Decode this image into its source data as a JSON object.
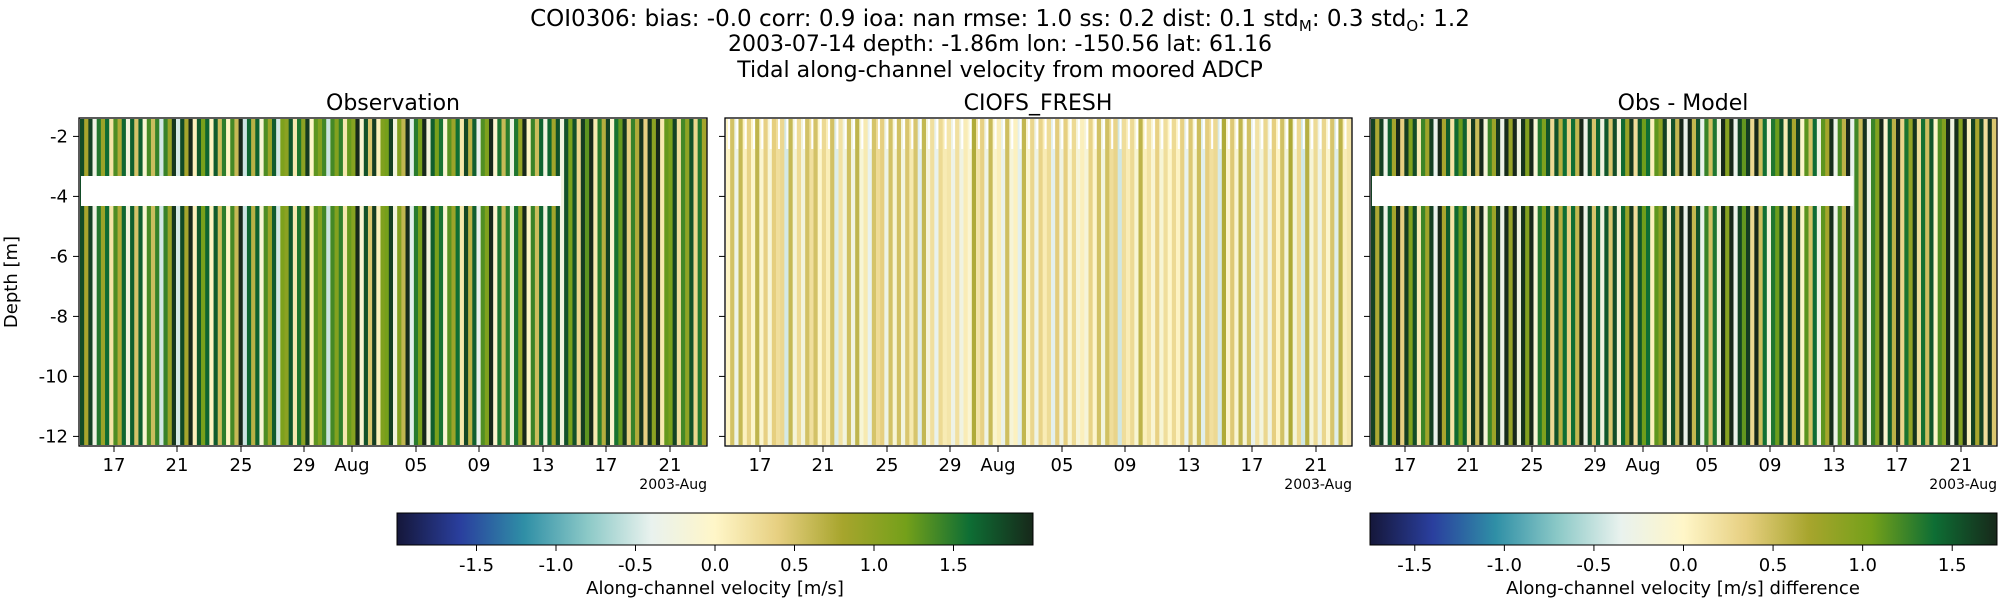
{
  "header": {
    "line1_prefix": "COI0306: bias: -0.0  corr: 0.9  ioa: nan  rmse: 1.0  ss: 0.2  dist: 0.1  std",
    "stdM_sub": "M",
    "stdM_mid": ": 0.3  std",
    "stdO_sub": "O",
    "stdO_val": ": 1.2",
    "line2": "2003-07-14 depth: -1.86m lon: -150.56 lat: 61.16",
    "line3": "Tidal along-channel velocity from moored ADCP"
  },
  "colors": {
    "palette": [
      "#15173a",
      "#2a3f9e",
      "#2f8fa6",
      "#8cc9c7",
      "#e9f2ee",
      "#fff6c8",
      "#e6cf80",
      "#a7a52d",
      "#74a01a",
      "#0e6e34",
      "#17281a"
    ],
    "axis": "#000000",
    "gap": "#ffffff"
  },
  "chart_data": [
    {
      "type": "heatmap",
      "panel": "observation",
      "title": "Observation",
      "ylabel": "Depth [m]",
      "ylim": [
        -12.4,
        -1.2
      ],
      "yticks": [
        "-2",
        "-4",
        "-6",
        "-8",
        "-10",
        "-12"
      ],
      "xticks": [
        "17",
        "21",
        "25",
        "29",
        "Aug",
        "05",
        "09",
        "13",
        "17",
        "21"
      ],
      "x_offset_label": "2003-Aug",
      "vrange": [
        -2,
        2
      ],
      "missing_block": {
        "depth_range": [
          -4.35,
          -3.35
        ],
        "date_range": [
          "2003-07-14",
          "2003-08-14"
        ]
      }
    },
    {
      "type": "heatmap",
      "panel": "model",
      "title": "CIOFS_FRESH",
      "ylim": [
        -12.4,
        -1.2
      ],
      "xticks": [
        "17",
        "21",
        "25",
        "29",
        "Aug",
        "05",
        "09",
        "13",
        "17",
        "21"
      ],
      "x_offset_label": "2003-Aug",
      "vrange": [
        -2,
        2
      ]
    },
    {
      "type": "heatmap",
      "panel": "difference",
      "title": "Obs - Model",
      "ylim": [
        -12.4,
        -1.2
      ],
      "xticks": [
        "17",
        "21",
        "25",
        "29",
        "Aug",
        "05",
        "09",
        "13",
        "17",
        "21"
      ],
      "x_offset_label": "2003-Aug",
      "vrange": [
        -1.75,
        1.75
      ],
      "missing_block": {
        "depth_range": [
          -4.35,
          -3.35
        ],
        "date_range": [
          "2003-07-14",
          "2003-08-14"
        ]
      }
    }
  ],
  "colorbars": [
    {
      "label": "Along-channel velocity [m/s]",
      "ticks": [
        "-1.5",
        "-1.0",
        "-0.5",
        "0.0",
        "0.5",
        "1.0",
        "1.5"
      ],
      "tick_values": [
        -1.5,
        -1.0,
        -0.5,
        0.0,
        0.5,
        1.0,
        1.5
      ],
      "vrange": [
        -2,
        2
      ]
    },
    {
      "label": "Along-channel velocity [m/s] difference",
      "ticks": [
        "-1.5",
        "-1.0",
        "-0.5",
        "0.0",
        "0.5",
        "1.0",
        "1.5"
      ],
      "tick_values": [
        -1.5,
        -1.0,
        -0.5,
        0.0,
        0.5,
        1.0,
        1.5
      ],
      "vrange": [
        -1.75,
        1.75
      ]
    }
  ]
}
